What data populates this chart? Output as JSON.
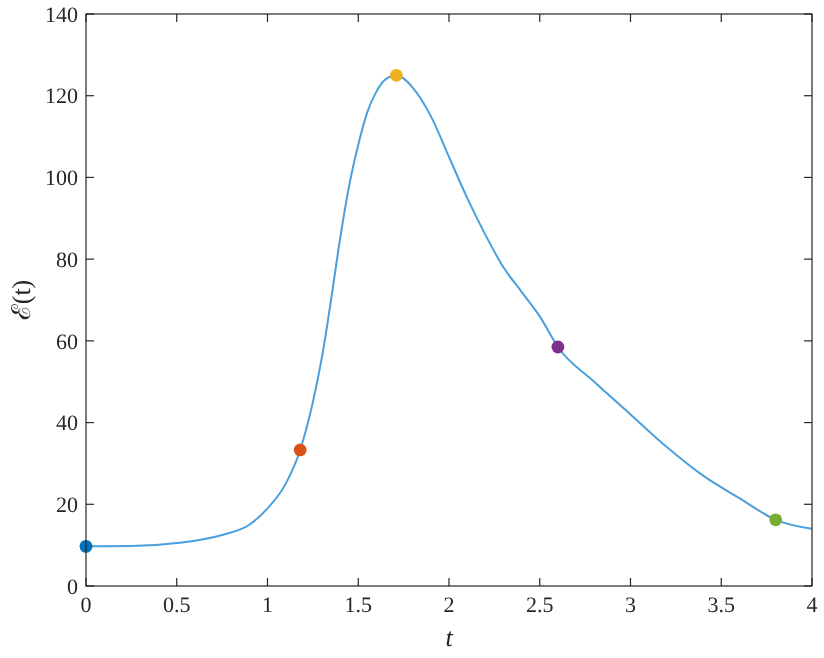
{
  "chart_data": {
    "type": "line",
    "xlabel": "t",
    "ylabel": "ℰ(t)",
    "xlim": [
      0,
      4
    ],
    "ylim": [
      0,
      140
    ],
    "xticks": [
      0,
      0.5,
      1,
      1.5,
      2,
      2.5,
      3,
      3.5,
      4
    ],
    "yticks": [
      0,
      20,
      40,
      60,
      80,
      100,
      120,
      140
    ],
    "grid": false,
    "series": [
      {
        "color": "#4a9fdc",
        "marker": "none",
        "x": [
          0,
          0.25,
          0.5,
          0.75,
          0.9,
          1.0,
          1.1,
          1.18,
          1.25,
          1.3,
          1.35,
          1.4,
          1.45,
          1.5,
          1.55,
          1.6,
          1.65,
          1.71,
          1.8,
          1.9,
          2.0,
          2.1,
          2.2,
          2.3,
          2.4,
          2.5,
          2.6,
          2.8,
          3.0,
          3.2,
          3.4,
          3.6,
          3.8,
          4.0
        ],
        "values": [
          9.7,
          9.8,
          10.5,
          12.5,
          15,
          19,
          25,
          33.3,
          45,
          56,
          70,
          85,
          98,
          108,
          116,
          121,
          124,
          125,
          122,
          115,
          105,
          95,
          86,
          78,
          72,
          66,
          58.5,
          50,
          42,
          34,
          27,
          21.5,
          16.2,
          14
        ]
      },
      {
        "type": "scatter",
        "marker": "circle",
        "x": [
          0,
          1.18,
          1.71,
          2.6,
          3.8
        ],
        "values": [
          9.7,
          33.3,
          125,
          58.5,
          16.2
        ],
        "colors": [
          "#0072bd",
          "#d95319",
          "#edb120",
          "#7e2f8e",
          "#77ac30"
        ]
      }
    ]
  }
}
